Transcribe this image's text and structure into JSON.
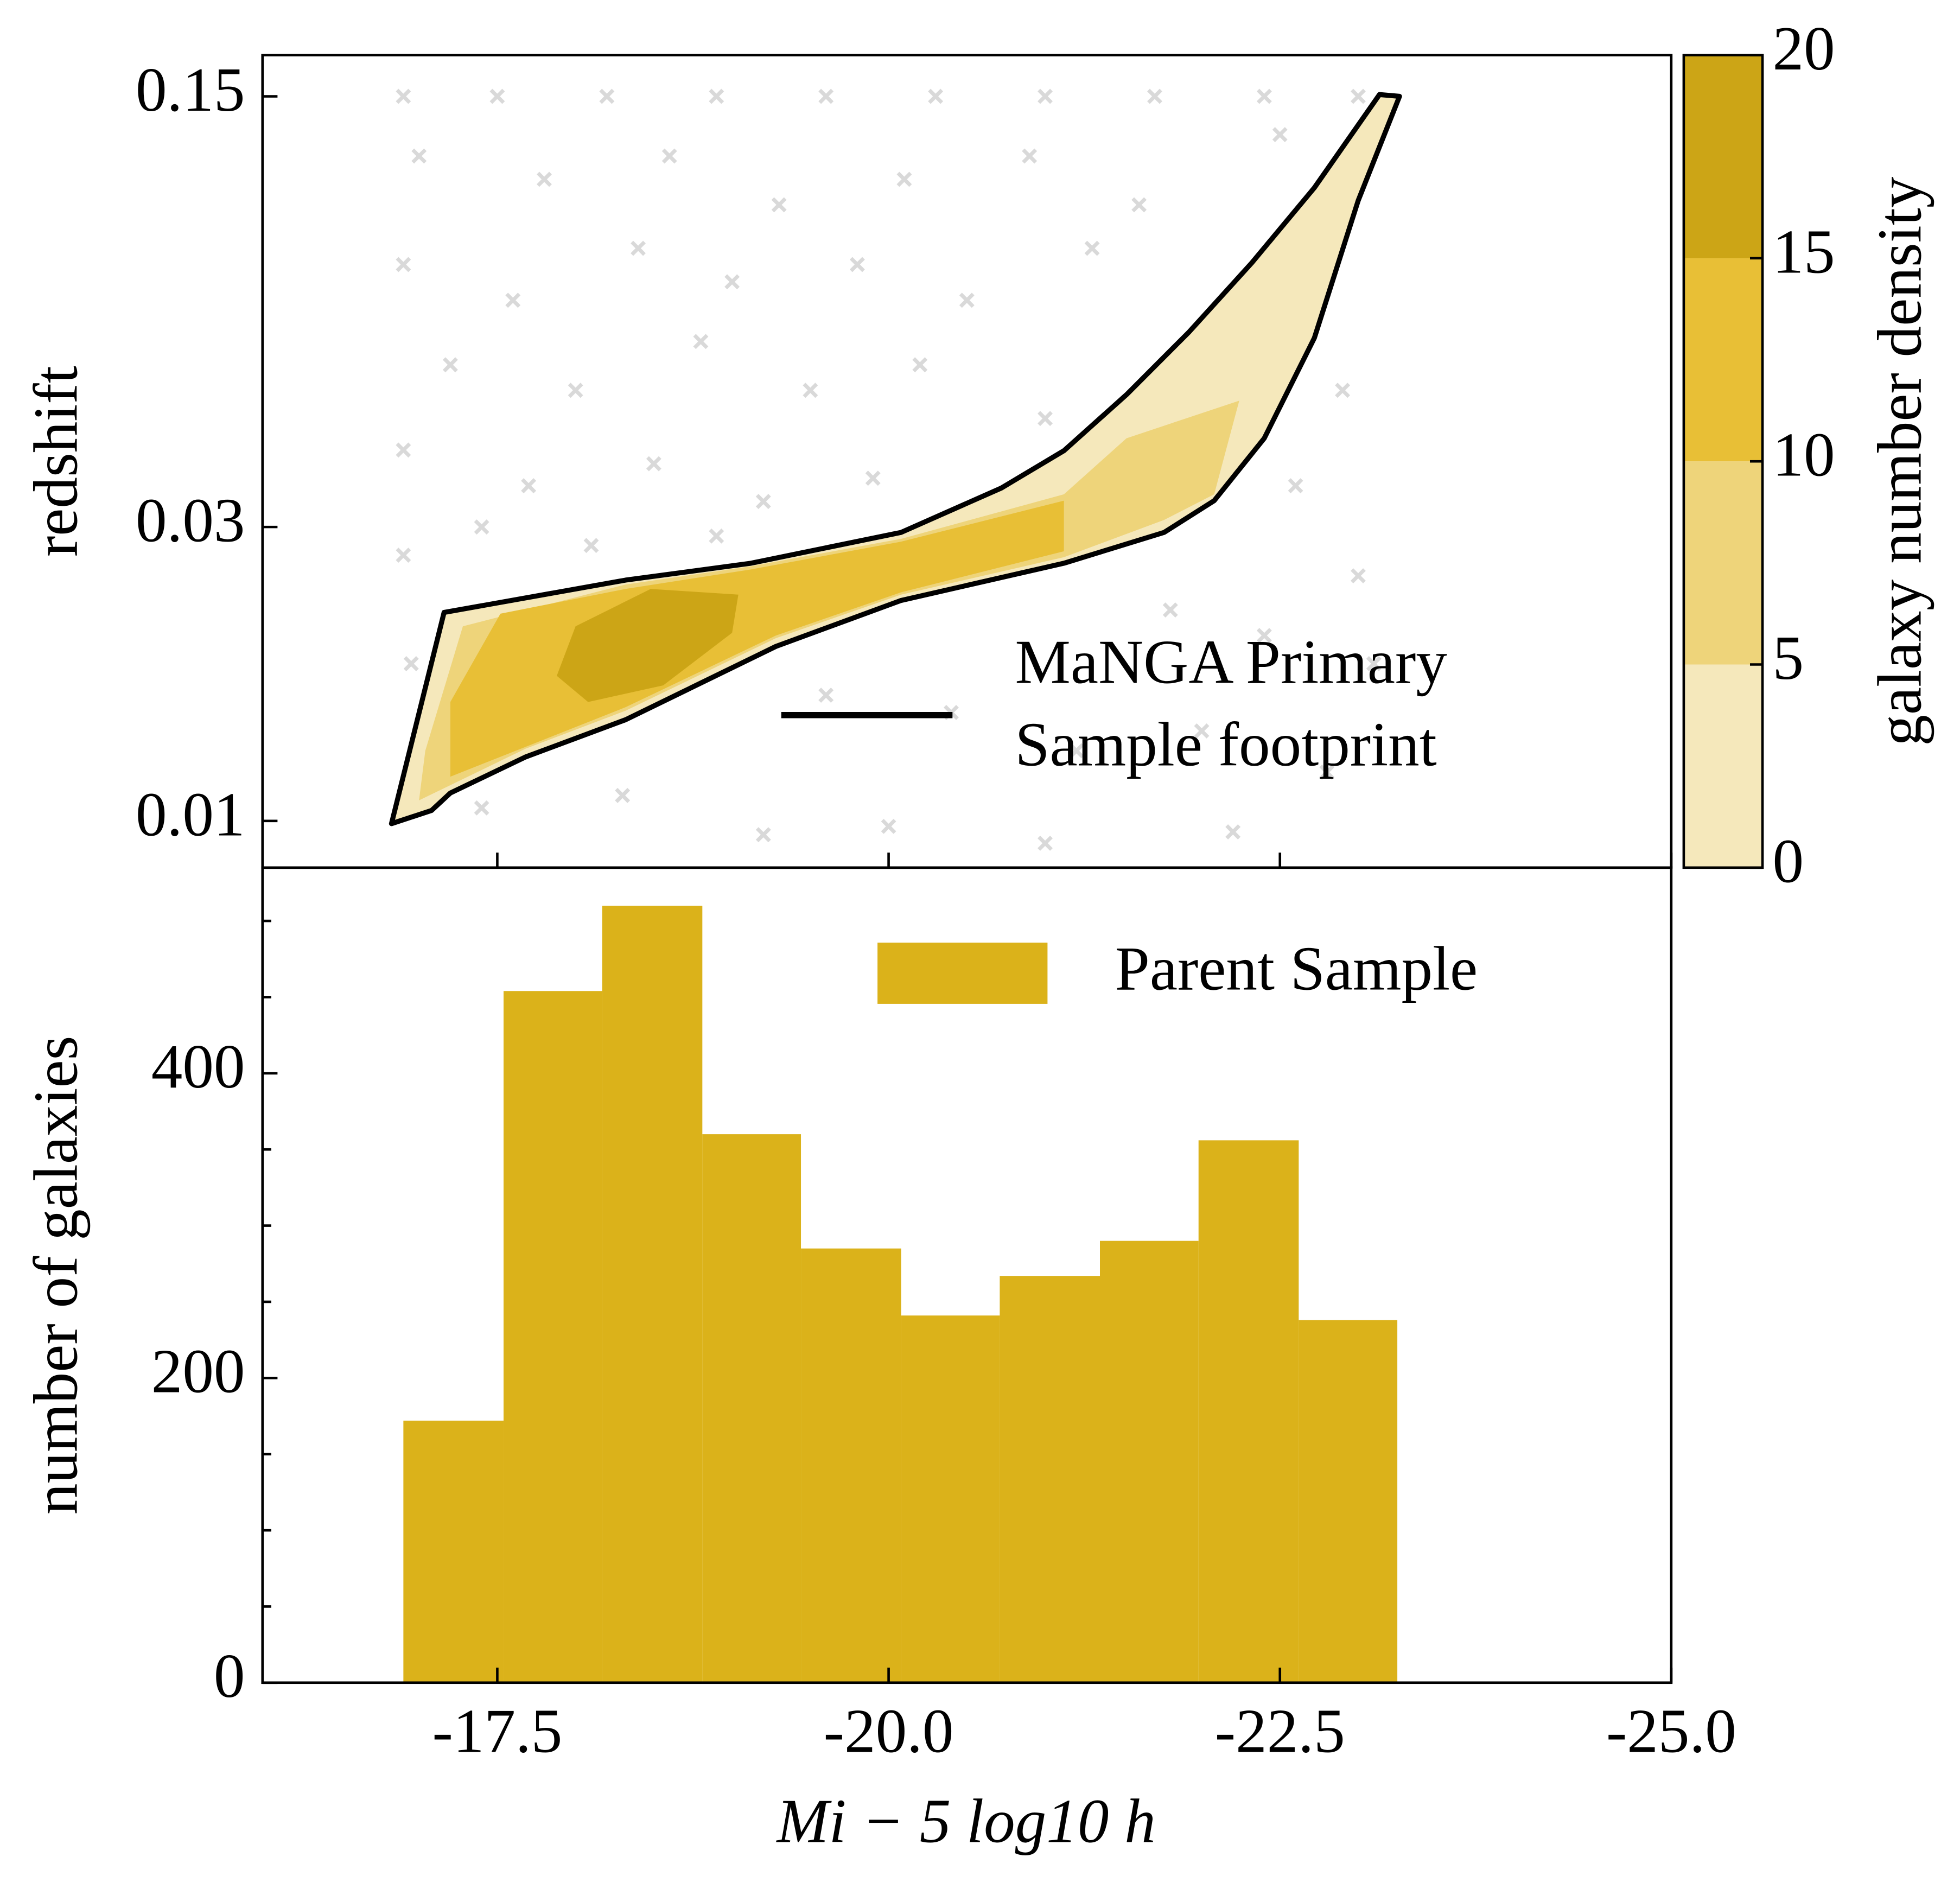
{
  "chart_data": [
    {
      "type": "contour",
      "ylabel": "redshift",
      "xlim": [
        -16,
        -25
      ],
      "ylim": [
        0.0084,
        0.175
      ],
      "yscale": "log",
      "yticks": [
        0.01,
        0.03,
        0.15
      ],
      "scatter": {
        "color": "#808080",
        "x": [
          -16.9,
          -17.5,
          -18.2,
          -18.9,
          -19.6,
          -20.3,
          -21.0,
          -21.7,
          -22.4,
          -23.0,
          -17.0,
          -17.8,
          -18.6,
          -19.3,
          -20.1,
          -20.9,
          -21.6,
          -22.5,
          -16.9,
          -17.6,
          -18.4,
          -19.0,
          -19.8,
          -20.5,
          -21.3,
          -22.8,
          -17.2,
          -18.0,
          -18.8,
          -19.5,
          -20.2,
          -21.0,
          -22.9,
          -16.9,
          -17.7,
          -18.5,
          -19.2,
          -19.9,
          -20.7,
          -22.6,
          -23.0,
          -16.9,
          -17.4,
          -18.1,
          -18.9,
          -21.8,
          -22.4,
          -23.1,
          -16.95,
          -19.6,
          -20.4,
          -21.2,
          -22.0,
          -22.8,
          -17.4,
          -18.3,
          -19.2,
          -20.0,
          -21.0,
          -22.2
        ],
        "y": [
          0.15,
          0.15,
          0.15,
          0.15,
          0.15,
          0.15,
          0.15,
          0.15,
          0.15,
          0.15,
          0.12,
          0.11,
          0.12,
          0.1,
          0.11,
          0.12,
          0.1,
          0.13,
          0.08,
          0.07,
          0.085,
          0.075,
          0.08,
          0.07,
          0.085,
          0.09,
          0.055,
          0.05,
          0.06,
          0.05,
          0.055,
          0.045,
          0.05,
          0.04,
          0.035,
          0.038,
          0.033,
          0.036,
          0.033,
          0.035,
          0.025,
          0.027,
          0.03,
          0.028,
          0.029,
          0.022,
          0.02,
          0.018,
          0.018,
          0.016,
          0.015,
          0.013,
          0.014,
          0.012,
          0.0105,
          0.011,
          0.0095,
          0.0098,
          0.0092,
          0.0096
        ]
      },
      "levels": [
        0,
        5,
        10,
        15,
        20
      ],
      "colors": [
        "#f5e8bb",
        "#eed47a",
        "#e8bf36",
        "#cca516"
      ],
      "contours": [
        {
          "level": 5,
          "x": [
            -17.0,
            -17.68,
            -18.32,
            -19.28,
            -20.08,
            -21.12,
            -21.76,
            -22.08,
            -22.24,
            -21.52,
            -21.12,
            -20.08,
            -19.12,
            -18.32,
            -17.28,
            -17.04
          ],
          "y": [
            0.0108,
            0.0131,
            0.0151,
            0.0198,
            0.0233,
            0.0268,
            0.0308,
            0.0339,
            0.0481,
            0.0418,
            0.0339,
            0.0287,
            0.0259,
            0.0242,
            0.0207,
            0.013
          ]
        },
        {
          "level": 10,
          "x": [
            -17.2,
            -18.32,
            -19.28,
            -20.08,
            -21.12,
            -21.12,
            -20.08,
            -19.12,
            -18.32,
            -17.52,
            -17.2
          ],
          "y": [
            0.0118,
            0.0153,
            0.02,
            0.0235,
            0.0274,
            0.0331,
            0.0284,
            0.0256,
            0.0238,
            0.0217,
            0.0156
          ]
        },
        {
          "level": 15,
          "x": [
            -17.88,
            -18.08,
            -18.56,
            -19.0,
            -19.04,
            -18.48,
            -18.0
          ],
          "y": [
            0.0172,
            0.0156,
            0.0166,
            0.0202,
            0.0233,
            0.0238,
            0.0207
          ]
        }
      ],
      "footprint": {
        "name": "MaNGA Primary\nSample footprint",
        "color": "#000000",
        "x": [
          -16.824,
          -17.08,
          -17.2,
          -17.68,
          -18.32,
          -19.28,
          -20.08,
          -21.12,
          -21.76,
          -22.08,
          -22.4,
          -22.72,
          -23.0,
          -23.264,
          -23.136,
          -22.72,
          -22.32,
          -21.92,
          -21.52,
          -21.12,
          -20.72,
          -20.08,
          -19.12,
          -18.32,
          -17.16,
          -16.824
        ],
        "y": [
          0.0099,
          0.0104,
          0.0111,
          0.0127,
          0.0146,
          0.0192,
          0.0228,
          0.0262,
          0.0294,
          0.0331,
          0.0418,
          0.0608,
          0.1016,
          0.15,
          0.151,
          0.1066,
          0.0805,
          0.0622,
          0.0492,
          0.0399,
          0.0347,
          0.0294,
          0.0262,
          0.0246,
          0.0218,
          0.0099
        ]
      },
      "legend": "lower right",
      "colorbar": {
        "label": "galaxy number density",
        "ticks": [
          0,
          5,
          10,
          15,
          20
        ]
      }
    },
    {
      "type": "histogram",
      "xlabel": "Mi − 5 log10 h",
      "ylabel": "number of galaxies",
      "xlim": [
        -16,
        -25
      ],
      "ylim": [
        0,
        535
      ],
      "xticks": [
        -17.5,
        {
          "value": -20,
          "label": "-20.0"
        },
        -22.5,
        {
          "value": -25,
          "label": "-25.0"
        }
      ],
      "yticks": [
        0,
        200,
        400
      ],
      "yminorticks": [
        50,
        100,
        150,
        250,
        300,
        350,
        450,
        500
      ],
      "bins": [
        -16.9,
        -17.54,
        -18.17,
        -18.81,
        -19.44,
        -20.08,
        -20.71,
        -21.35,
        -21.98,
        -22.62,
        -23.25
      ],
      "series": [
        {
          "name": "Parent Sample",
          "color": "#dbb21a",
          "values": [
            172,
            454,
            510,
            360,
            285,
            241,
            267,
            290,
            356,
            238
          ]
        }
      ],
      "legend": "upper right"
    }
  ]
}
